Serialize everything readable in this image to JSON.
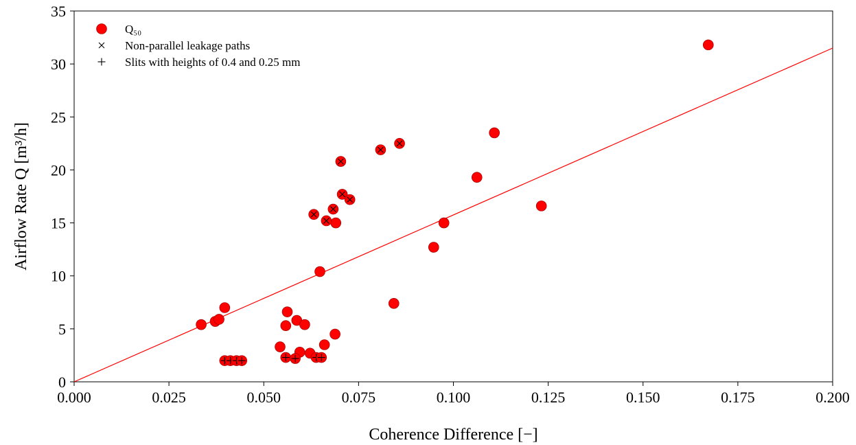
{
  "chart_data": {
    "type": "scatter",
    "xlabel": "Coherence Difference [−]",
    "ylabel": "Airflow Rate Q [m³/h]",
    "xlim": [
      0,
      0.2
    ],
    "ylim": [
      0,
      35
    ],
    "x_ticks": [
      0.0,
      0.025,
      0.05,
      0.075,
      0.1,
      0.125,
      0.15,
      0.175,
      0.2
    ],
    "x_tick_labels": [
      "0.000",
      "0.025",
      "0.050",
      "0.075",
      "0.100",
      "0.125",
      "0.150",
      "0.175",
      "0.200"
    ],
    "y_ticks": [
      0,
      5,
      10,
      15,
      20,
      25,
      30,
      35
    ],
    "y_tick_labels": [
      "0",
      "5",
      "10",
      "15",
      "20",
      "25",
      "30",
      "35"
    ],
    "grid": false,
    "legend_position": "top-left",
    "legend": [
      {
        "label": "Q₅₀",
        "marker": "circle"
      },
      {
        "label": "Non-parallel leakage paths",
        "marker": "x"
      },
      {
        "label": "Slits with heights of 0.4 and 0.25 mm",
        "marker": "plus"
      }
    ],
    "series": [
      {
        "name": "Q₅₀",
        "marker": "circle",
        "color": "#ff0000",
        "points": [
          [
            0.0335,
            5.4
          ],
          [
            0.0372,
            5.7
          ],
          [
            0.0382,
            5.9
          ],
          [
            0.0397,
            7.0
          ],
          [
            0.0543,
            3.3
          ],
          [
            0.0558,
            5.3
          ],
          [
            0.0562,
            6.6
          ],
          [
            0.0587,
            5.8
          ],
          [
            0.0595,
            2.8
          ],
          [
            0.0608,
            5.4
          ],
          [
            0.0622,
            2.7
          ],
          [
            0.0648,
            10.4
          ],
          [
            0.066,
            3.5
          ],
          [
            0.0688,
            4.5
          ],
          [
            0.069,
            15.0
          ],
          [
            0.0843,
            7.4
          ],
          [
            0.0948,
            12.7
          ],
          [
            0.0975,
            15.0
          ],
          [
            0.1062,
            19.3
          ],
          [
            0.1108,
            23.5
          ],
          [
            0.1232,
            16.6
          ],
          [
            0.1672,
            31.8
          ]
        ]
      },
      {
        "name": "Non-parallel leakage paths",
        "marker": "x",
        "color": "#ff0000",
        "points": [
          [
            0.0632,
            15.8
          ],
          [
            0.0665,
            15.2
          ],
          [
            0.0683,
            16.3
          ],
          [
            0.0703,
            20.8
          ],
          [
            0.0707,
            17.7
          ],
          [
            0.0727,
            17.2
          ],
          [
            0.0808,
            21.9
          ],
          [
            0.0858,
            22.5
          ]
        ]
      },
      {
        "name": "Slits with heights of 0.4 and 0.25 mm",
        "marker": "plus",
        "color": "#ff0000",
        "points": [
          [
            0.0397,
            2.0
          ],
          [
            0.0412,
            2.0
          ],
          [
            0.0428,
            2.0
          ],
          [
            0.0442,
            2.0
          ],
          [
            0.0558,
            2.3
          ],
          [
            0.0583,
            2.2
          ],
          [
            0.0638,
            2.3
          ],
          [
            0.0652,
            2.3
          ]
        ]
      }
    ],
    "fit_line": {
      "type": "line",
      "color": "#ff0000",
      "x": [
        0.0,
        0.2
      ],
      "y": [
        0.0,
        31.5
      ]
    }
  }
}
